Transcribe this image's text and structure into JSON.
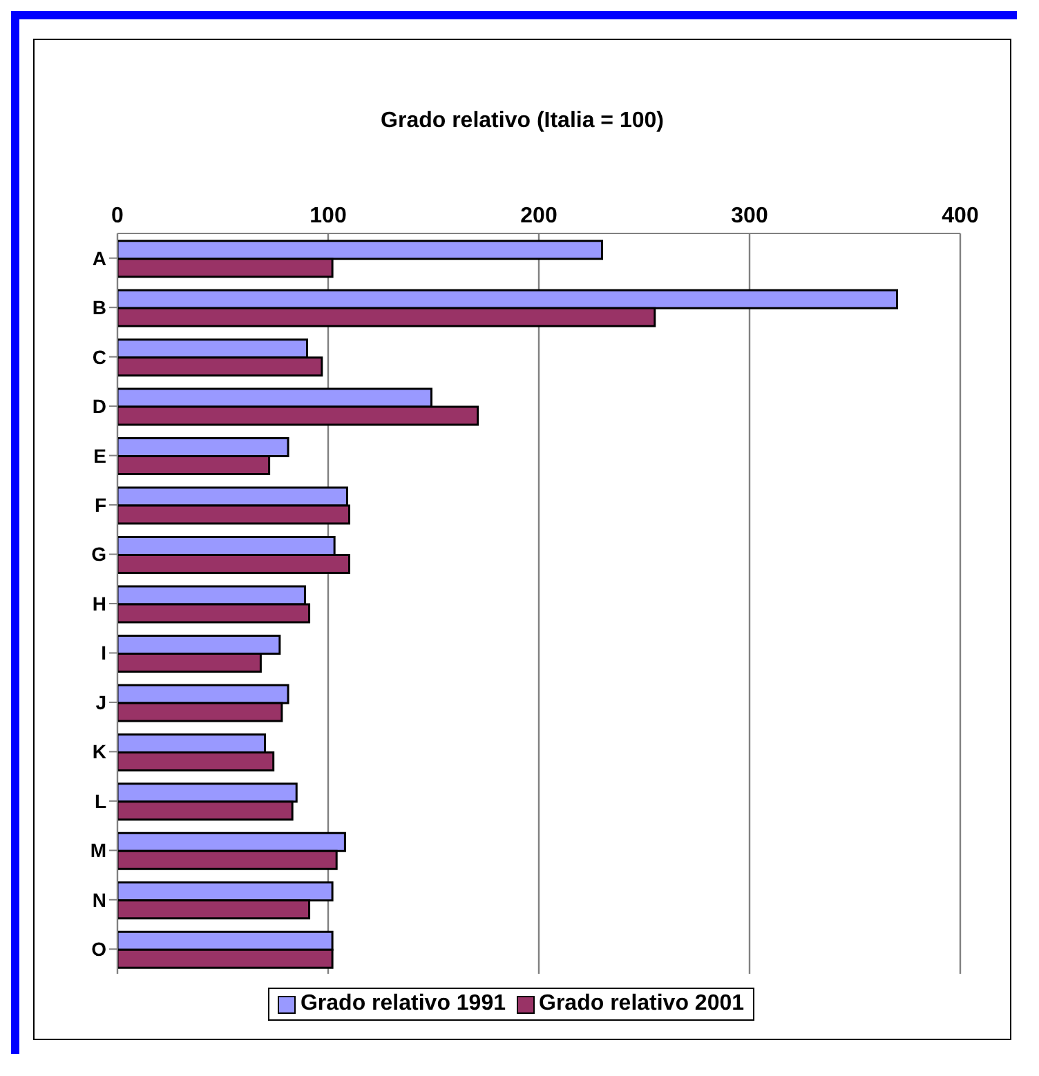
{
  "chart_data": {
    "type": "bar",
    "orientation": "horizontal",
    "title": "Grado relativo (Italia = 100)",
    "categories": [
      "A",
      "B",
      "C",
      "D",
      "E",
      "F",
      "G",
      "H",
      "I",
      "J",
      "K",
      "L",
      "M",
      "N",
      "O"
    ],
    "series": [
      {
        "name": "Grado relativo 1991",
        "color": "#9999ff",
        "values": [
          230,
          370,
          90,
          149,
          81,
          109,
          103,
          89,
          77,
          81,
          70,
          85,
          108,
          102,
          102
        ]
      },
      {
        "name": "Grado relativo 2001",
        "color": "#993366",
        "values": [
          102,
          255,
          97,
          171,
          72,
          110,
          110,
          91,
          68,
          78,
          74,
          83,
          104,
          91,
          102
        ]
      }
    ],
    "xlim": [
      0,
      400
    ],
    "xticks": [
      0,
      100,
      200,
      300,
      400
    ],
    "grid": "x",
    "legend": "bottom"
  }
}
